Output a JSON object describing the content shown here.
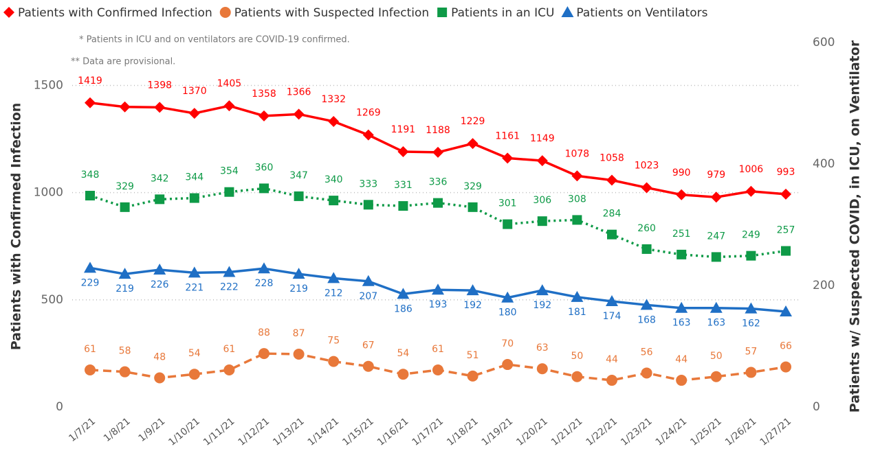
{
  "chart_data": {
    "type": "line",
    "notes": [
      "* Patients in ICU and on ventilators are COVID-19 confirmed.",
      "** Data are provisional."
    ],
    "y_label": "Patients with Confirmed Infection",
    "y2_label": "Patients w/ Suspected COVID, in ICU, on Ventilator",
    "categories": [
      "1/7/21",
      "1/8/21",
      "1/9/21",
      "1/10/21",
      "1/11/21",
      "1/12/21",
      "1/13/21",
      "1/14/21",
      "1/15/21",
      "1/16/21",
      "1/17/21",
      "1/18/21",
      "1/19/21",
      "1/20/21",
      "1/21/21",
      "1/22/21",
      "1/23/21",
      "1/24/21",
      "1/25/21",
      "1/26/21",
      "1/27/21"
    ],
    "ylim": [
      0,
      1700
    ],
    "yticks": [
      0,
      500,
      1000,
      1500
    ],
    "y2lim": [
      0,
      600
    ],
    "y2ticks": [
      0,
      200,
      400,
      600
    ],
    "grid": true,
    "series": [
      {
        "name": "Patients with Confirmed Infection",
        "color": "#ff0000",
        "marker": "diamond",
        "dash": "solid",
        "values": [
          1419,
          1400,
          1398,
          1370,
          1405,
          1358,
          1366,
          1332,
          1269,
          1191,
          1188,
          1229,
          1161,
          1149,
          1078,
          1058,
          1023,
          990,
          979,
          1006,
          993
        ],
        "value_labels": [
          "1419",
          null,
          "1398",
          "1370",
          "1405",
          "1358",
          "1366",
          "1332",
          "1269",
          "1191",
          "1188",
          "1229",
          "1161",
          "1149",
          "1078",
          "1058",
          "1023",
          "990",
          "979",
          "1006",
          "993"
        ]
      },
      {
        "name": "Patients with Suspected Infection",
        "color": "#e8783a",
        "marker": "circle",
        "dash": "dashed",
        "axis": "y2",
        "values": [
          61,
          58,
          48,
          54,
          61,
          88,
          87,
          75,
          67,
          54,
          61,
          51,
          70,
          63,
          50,
          44,
          56,
          44,
          50,
          57,
          66
        ]
      },
      {
        "name": "Patients in an ICU",
        "color": "#0e9a47",
        "marker": "square",
        "dash": "dotted",
        "axis": "y2",
        "values": [
          348,
          329,
          342,
          344,
          354,
          360,
          347,
          340,
          333,
          331,
          336,
          329,
          301,
          306,
          308,
          284,
          260,
          251,
          247,
          249,
          257
        ]
      },
      {
        "name": "Patients on Ventilators",
        "color": "#1f6fc5",
        "marker": "triangle",
        "dash": "solid",
        "axis": "y2",
        "values": [
          229,
          219,
          226,
          221,
          222,
          228,
          219,
          212,
          207,
          186,
          193,
          192,
          180,
          192,
          181,
          174,
          168,
          163,
          163,
          162,
          157
        ],
        "value_labels": [
          "229",
          "219",
          "226",
          "221",
          "222",
          "228",
          "219",
          "212",
          "207",
          "186",
          "193",
          "192",
          "180",
          "192",
          "181",
          "174",
          "168",
          "163",
          "163",
          "162",
          null
        ]
      }
    ]
  }
}
